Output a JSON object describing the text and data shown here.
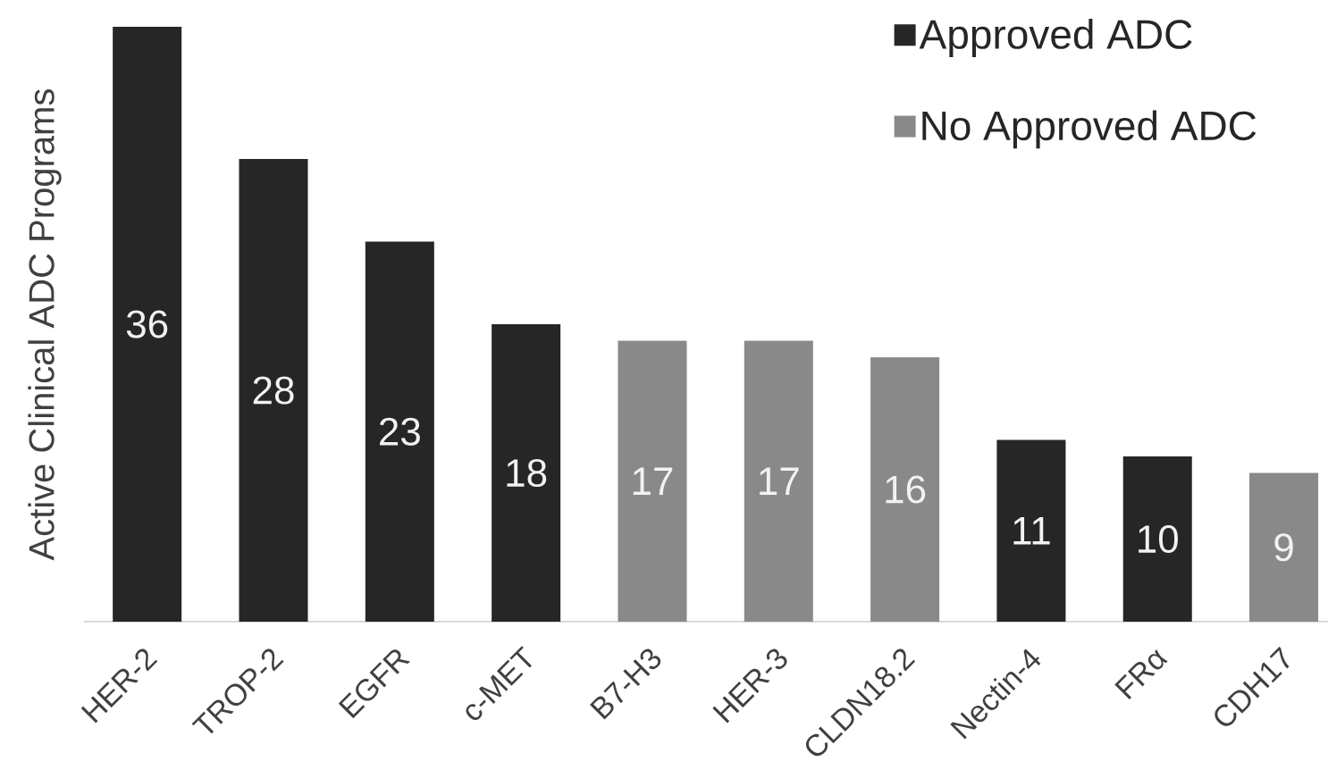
{
  "chart_data": {
    "type": "bar",
    "ylabel": "Active Clinical ADC Programs",
    "categories": [
      "HER-2",
      "TROP-2",
      "EGFR",
      "c-MET",
      "B7-H3",
      "HER-3",
      "CLDN18.2",
      "Nectin-4",
      "FRα",
      "CDH17"
    ],
    "series": [
      {
        "name": "Approved ADC",
        "color": "#262626",
        "values": [
          36,
          28,
          23,
          18,
          null,
          null,
          null,
          11,
          10,
          null
        ]
      },
      {
        "name": "No Approved ADC",
        "color": "#898989",
        "values": [
          null,
          null,
          null,
          null,
          17,
          17,
          16,
          null,
          null,
          9
        ]
      }
    ],
    "data_labels": true,
    "legend": "top right"
  }
}
